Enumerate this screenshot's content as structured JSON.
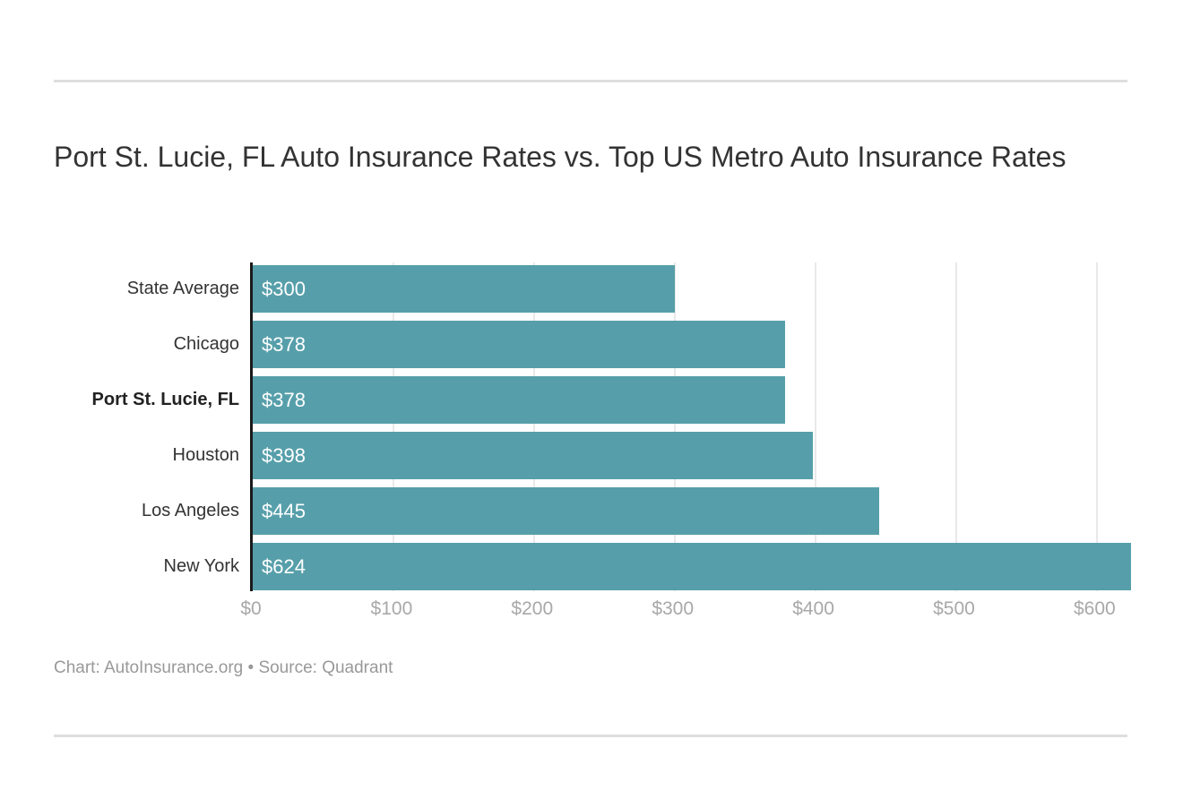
{
  "header": {
    "title": "Port St. Lucie, FL Auto Insurance Rates vs. Top US Metro Auto Insurance Rates"
  },
  "chart_data": {
    "type": "bar",
    "orientation": "horizontal",
    "title": "Port St. Lucie, FL Auto Insurance Rates vs. Top US Metro Auto Insurance Rates",
    "categories": [
      "State Average",
      "Chicago",
      "Port St. Lucie, FL",
      "Houston",
      "Los Angeles",
      "New York"
    ],
    "values": [
      300,
      378,
      378,
      398,
      445,
      624
    ],
    "value_labels": [
      "$300",
      "$378",
      "$378",
      "$398",
      "$445",
      "$624"
    ],
    "highlighted_category": "Port St. Lucie, FL",
    "xlabel": "",
    "ylabel": "",
    "xlim": [
      0,
      624
    ],
    "x_ticks": [
      0,
      100,
      200,
      300,
      400,
      500,
      600
    ],
    "x_tick_labels": [
      "$0",
      "$100",
      "$200",
      "$300",
      "$400",
      "$500",
      "$600"
    ],
    "grid": true,
    "legend": false,
    "bar_color": "#569FAA"
  },
  "footer": {
    "attribution": "Chart: AutoInsurance.org • Source: Quadrant"
  },
  "colors": {
    "bar": "#569FAA",
    "axis_line": "#1a1a1a",
    "gridline": "#e9e9e9",
    "tick_label": "#a8a8a8",
    "category_label": "#333333",
    "value_label": "#ffffff",
    "title": "#333333",
    "attribution": "#999999",
    "divider": "#dedede"
  }
}
